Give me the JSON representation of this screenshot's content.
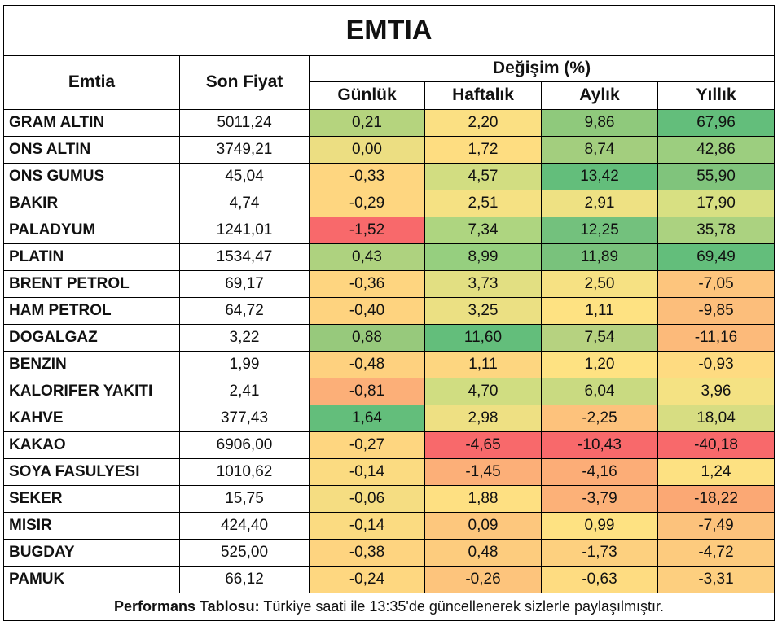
{
  "title": "EMTIA",
  "headers": {
    "emtia": "Emtia",
    "son_fiyat": "Son Fiyat",
    "degisim": "Değişim (%)",
    "gunluk": "Günlük",
    "haftalik": "Haftalık",
    "aylik": "Aylık",
    "yillik": "Yıllık"
  },
  "rows": [
    {
      "name": "GRAM ALTIN",
      "price": "5011,24",
      "gunluk": "0,21",
      "haftalik": "2,20",
      "aylik": "9,86",
      "yillik": "67,96",
      "colors": [
        "#b5d47e",
        "#fbe083",
        "#8fc97c",
        "#63be7b"
      ]
    },
    {
      "name": "ONS ALTIN",
      "price": "3749,21",
      "gunluk": "0,00",
      "haftalik": "1,72",
      "aylik": "8,74",
      "yillik": "42,86",
      "colors": [
        "#ecde82",
        "#fedd81",
        "#a3ce7e",
        "#9cce7f"
      ]
    },
    {
      "name": "ONS GUMUS",
      "price": "45,04",
      "gunluk": "-0,33",
      "haftalik": "4,57",
      "aylik": "13,42",
      "yillik": "55,90",
      "colors": [
        "#fed680",
        "#d2dd81",
        "#63be7b",
        "#80c47c"
      ]
    },
    {
      "name": "BAKIR",
      "price": "4,74",
      "gunluk": "-0,29",
      "haftalik": "2,51",
      "aylik": "2,91",
      "yillik": "17,90",
      "colors": [
        "#fed680",
        "#f5e183",
        "#eee183",
        "#d8e082"
      ]
    },
    {
      "name": "PALADYUM",
      "price": "1241,01",
      "gunluk": "-1,52",
      "haftalik": "7,34",
      "aylik": "12,25",
      "yillik": "35,78",
      "colors": [
        "#f8696b",
        "#aed580",
        "#73c17d",
        "#abd280"
      ]
    },
    {
      "name": "PLATIN",
      "price": "1534,47",
      "gunluk": "0,43",
      "haftalik": "8,99",
      "aylik": "11,89",
      "yillik": "69,49",
      "colors": [
        "#aed27f",
        "#96cf7f",
        "#79c27c",
        "#63be7b"
      ]
    },
    {
      "name": "BRENT PETROL",
      "price": "69,17",
      "gunluk": "-0,36",
      "haftalik": "3,73",
      "aylik": "2,50",
      "yillik": "-7,05",
      "colors": [
        "#fed580",
        "#e2df82",
        "#f6e183",
        "#fdc57d"
      ]
    },
    {
      "name": "HAM PETROL",
      "price": "64,72",
      "gunluk": "-0,40",
      "haftalik": "3,25",
      "aylik": "1,11",
      "yillik": "-9,85",
      "colors": [
        "#fed37f",
        "#ebe083",
        "#fee282",
        "#fcbe7b"
      ]
    },
    {
      "name": "DOGALGAZ",
      "price": "3,22",
      "gunluk": "0,88",
      "haftalik": "11,60",
      "aylik": "7,54",
      "yillik": "-11,16",
      "colors": [
        "#97c97c",
        "#63be7b",
        "#b6d280",
        "#fcba7a"
      ]
    },
    {
      "name": "BENZIN",
      "price": "1,99",
      "gunluk": "-0,48",
      "haftalik": "1,11",
      "aylik": "1,20",
      "yillik": "-0,93",
      "colors": [
        "#fed17f",
        "#fdd680",
        "#fee282",
        "#fedb81"
      ]
    },
    {
      "name": "KALORIFER YAKITI",
      "price": "2,41",
      "gunluk": "-0,81",
      "haftalik": "4,70",
      "aylik": "6,04",
      "yillik": "3,96",
      "colors": [
        "#fcaf78",
        "#d0dd81",
        "#c9da81",
        "#f4e283"
      ]
    },
    {
      "name": "KAHVE",
      "price": "377,43",
      "gunluk": "1,64",
      "haftalik": "2,98",
      "aylik": "-2,25",
      "yillik": "18,04",
      "colors": [
        "#63be7b",
        "#eee083",
        "#fdc27c",
        "#d7dd82"
      ]
    },
    {
      "name": "KAKAO",
      "price": "6906,00",
      "gunluk": "-0,27",
      "haftalik": "-4,65",
      "aylik": "-10,43",
      "yillik": "-40,18",
      "colors": [
        "#fed680",
        "#f8696b",
        "#f8696b",
        "#f8696b"
      ]
    },
    {
      "name": "SOYA FASULYESI",
      "price": "1010,62",
      "gunluk": "-0,14",
      "haftalik": "-1,45",
      "aylik": "-4,16",
      "yillik": "1,24",
      "colors": [
        "#fbdb81",
        "#fcaf78",
        "#fcad77",
        "#fde182"
      ]
    },
    {
      "name": "SEKER",
      "price": "15,75",
      "gunluk": "-0,06",
      "haftalik": "1,88",
      "aylik": "-3,79",
      "yillik": "-18,22",
      "colors": [
        "#f5dd82",
        "#fee082",
        "#fcb178",
        "#fba874"
      ]
    },
    {
      "name": "MISIR",
      "price": "424,40",
      "gunluk": "-0,14",
      "haftalik": "0,09",
      "aylik": "0,99",
      "yillik": "-7,49",
      "colors": [
        "#fbdb81",
        "#fdc77d",
        "#fee282",
        "#fcc27c"
      ]
    },
    {
      "name": "BUGDAY",
      "price": "525,00",
      "gunluk": "-0,38",
      "haftalik": "0,48",
      "aylik": "-1,73",
      "yillik": "-4,72",
      "colors": [
        "#fed480",
        "#fdcc7e",
        "#fdd07f",
        "#fdcb7e"
      ]
    },
    {
      "name": "PAMUK",
      "price": "66,12",
      "gunluk": "-0,24",
      "haftalik": "-0,26",
      "aylik": "-0,63",
      "yillik": "-3,31",
      "colors": [
        "#fed780",
        "#fdc47c",
        "#fedc81",
        "#fdcf7f"
      ]
    }
  ],
  "footer": {
    "bold": "Performans Tablosu:",
    "text": " Türkiye saati ile 13:35'de güncellenerek sizlerle paylaşılmıştır."
  }
}
